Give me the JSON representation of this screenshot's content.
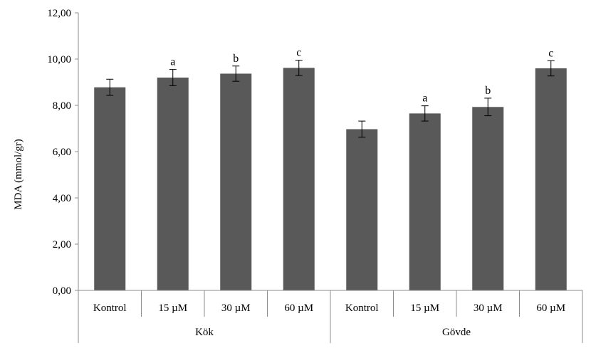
{
  "chart_data": {
    "type": "bar",
    "ylabel": "MDA (mmol/gr)",
    "ylim": [
      0,
      12
    ],
    "ytick_step": 2,
    "ytick_labels": [
      "0,00",
      "2,00",
      "4,00",
      "6,00",
      "8,00",
      "10,00",
      "12,00"
    ],
    "grid": false,
    "legend": "none",
    "groups": [
      {
        "name": "Kök",
        "categories": [
          "Kontrol",
          "15 µM",
          "30 µM",
          "60 µM"
        ],
        "values": [
          8.78,
          9.2,
          9.37,
          9.62
        ],
        "errors": [
          0.35,
          0.35,
          0.33,
          0.33
        ],
        "significance": [
          "",
          "a",
          "b",
          "c"
        ]
      },
      {
        "name": "Gövde",
        "categories": [
          "Kontrol",
          "15 µM",
          "30 µM",
          "60 µM"
        ],
        "values": [
          6.97,
          7.65,
          7.93,
          9.6
        ],
        "errors": [
          0.35,
          0.33,
          0.38,
          0.33
        ],
        "significance": [
          "",
          "a",
          "b",
          "c"
        ]
      }
    ],
    "colors": {
      "bar": "#595959",
      "axis": "#8c8c8c",
      "text": "#000000"
    }
  }
}
